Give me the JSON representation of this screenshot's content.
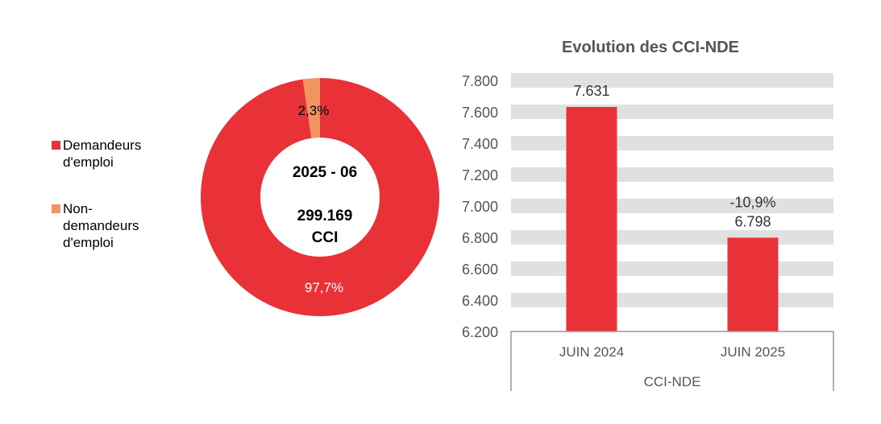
{
  "chart_data": [
    {
      "type": "pie",
      "variant": "donut",
      "center_text": [
        "2025 - 06",
        "299.169",
        "CCI"
      ],
      "slices": [
        {
          "label": "Demandeurs d'emploi",
          "value": 97.7,
          "data_label": "97,7%",
          "color": "#e83237"
        },
        {
          "label": "Non-demandeurs d'emploi",
          "value": 2.3,
          "data_label": "2,3%",
          "color": "#f0955f"
        }
      ],
      "legend_lines": [
        [
          "Demandeurs",
          "d'emploi"
        ],
        [
          "Non-",
          "demandeurs",
          "d'emploi"
        ]
      ],
      "legend_placement": "left"
    },
    {
      "type": "bar",
      "title": "Evolution des CCI-NDE",
      "categories": [
        "JUIN 2024",
        "JUIN 2025"
      ],
      "group_label": "CCI-NDE",
      "values": [
        7631,
        6798
      ],
      "data_labels": [
        "7.631",
        "6.798"
      ],
      "change_label": "-10,9%",
      "ylim": [
        6200,
        7800
      ],
      "yticks": [
        "6.200",
        "6.400",
        "6.600",
        "6.800",
        "7.000",
        "7.200",
        "7.400",
        "7.600",
        "7.800"
      ],
      "grid": "banded",
      "bar_color": "#e83237",
      "grid_color": "#e0e0e0"
    }
  ]
}
